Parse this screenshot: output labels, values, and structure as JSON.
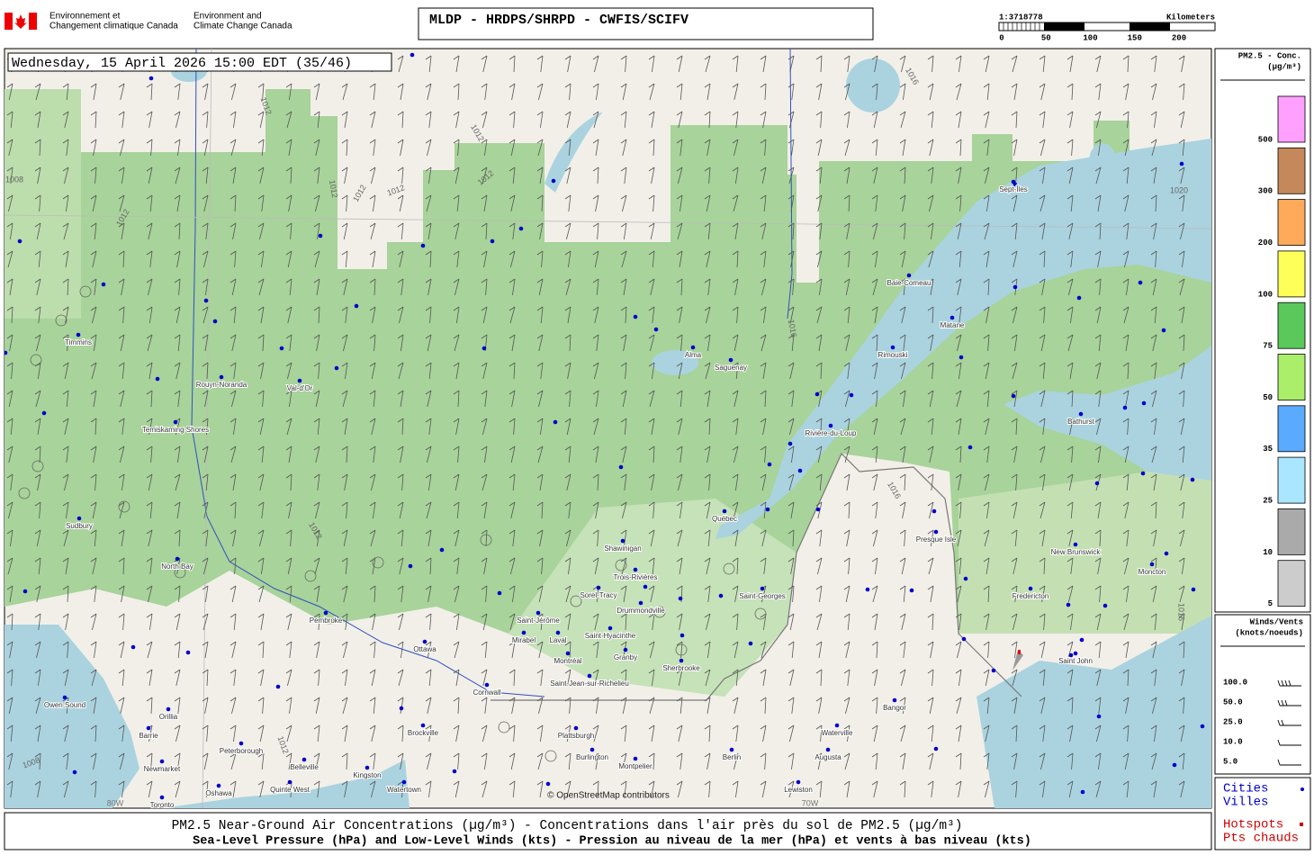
{
  "header": {
    "dept_fr": [
      "Environnement et",
      "Changement climatique Canada"
    ],
    "dept_en": [
      "Environment and",
      "Climate Change Canada"
    ],
    "title": "MLDP - HRDPS/SHRPD - CWFIS/SCIFV"
  },
  "scale": {
    "ratio": "1:3718778",
    "unit": "Kilometers",
    "ticks": [
      0,
      50,
      100,
      150,
      200
    ]
  },
  "map": {
    "timestamp": "Wednesday, 15 April 2026 15:00 EDT (35/46)",
    "attribution": "© OpenStreetMap contributors",
    "cities": [
      "Timmins",
      "Rouyn-Noranda",
      "Val-d'Or",
      "Temiskaming Shores",
      "Sudbury",
      "North Bay",
      "Pembroke",
      "Ottawa",
      "Cornwall",
      "Brockville",
      "Kingston",
      "Peterborough",
      "Owen Sound",
      "Orillia",
      "Barrie",
      "Newmarket",
      "Toronto",
      "Oshawa",
      "Belleville",
      "Quinte West",
      "Watertown",
      "Plattsburgh",
      "Burlington",
      "Montpelier",
      "Berlin",
      "Lewiston",
      "Augusta",
      "Waterville",
      "Bangor",
      "Saint-Jérôme",
      "Mirabel",
      "Laval",
      "Montréal",
      "Saint-Jean-sur-Richelieu",
      "Saint-Hyacinthe",
      "Granby",
      "Sherbrooke",
      "Drummondville",
      "Sorel-Tracy",
      "Trois-Rivières",
      "Shawinigan",
      "Québec",
      "Saint-Georges",
      "Rivière-du-Loup",
      "Rimouski",
      "Matane",
      "Baie-Comeau",
      "Sept-Îles",
      "Alma",
      "Saguenay",
      "Presque Isle",
      "Bathurst",
      "Moncton",
      "Fredericton",
      "Saint John",
      "New Brunswick"
    ],
    "isobars": [
      "1012",
      "1012",
      "1012",
      "1012",
      "1012",
      "1012",
      "1012",
      "1016",
      "1016",
      "1020",
      "1016",
      "1016",
      "1012",
      "1012",
      "1008",
      "1008"
    ],
    "meridians": [
      "80W",
      "70W"
    ]
  },
  "pm_legend": {
    "title": [
      "PM2.5 - Conc.",
      "(µg/m³)"
    ],
    "classes": [
      {
        "label": "500",
        "color": "#ffa0ff"
      },
      {
        "label": "300",
        "color": "#c4885a"
      },
      {
        "label": "200",
        "color": "#ffaa5a"
      },
      {
        "label": "100",
        "color": "#ffff5a"
      },
      {
        "label": "75",
        "color": "#5ac85a"
      },
      {
        "label": "50",
        "color": "#aaee6a"
      },
      {
        "label": "35",
        "color": "#5aaaff"
      },
      {
        "label": "25",
        "color": "#aae6ff"
      },
      {
        "label": "10",
        "color": "#aaaaaa"
      },
      {
        "label": "5",
        "color": "#cccccc"
      }
    ]
  },
  "wind_legend": {
    "title": [
      "Winds/Vents",
      "(knots/noeuds)"
    ],
    "speeds": [
      "100.0",
      "50.0",
      "25.0",
      "10.0",
      "5.0"
    ]
  },
  "point_legend": {
    "cities": [
      "Cities",
      "Villes"
    ],
    "hotspots": [
      "Hotspots",
      "Pts chauds"
    ]
  },
  "footer": [
    "PM2.5 Near-Ground Air Concentrations (µg/m³) - Concentrations dans l'air près du sol de PM2.5 (µg/m³)",
    "Sea-Level Pressure (hPa) and Low-Level Winds (kts) - Pression au niveau de la mer (hPa) et vents à bas niveau (kts)"
  ]
}
